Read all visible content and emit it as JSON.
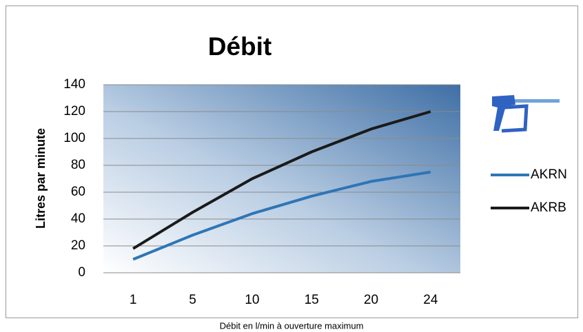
{
  "chart_data": {
    "type": "line",
    "title": "Débit",
    "ylabel": "Litres par minute",
    "xlabel": "Débit en l/min à ouverture maximum",
    "categories": [
      "1",
      "5",
      "10",
      "15",
      "20",
      "24"
    ],
    "series": [
      {
        "name": "AKRN",
        "color": "#2e75b6",
        "values": [
          10,
          28,
          44,
          57,
          68,
          75
        ]
      },
      {
        "name": "AKRB",
        "color": "#1a1a1a",
        "values": [
          18,
          45,
          70,
          90,
          107,
          120
        ]
      }
    ],
    "ylim": [
      0,
      140
    ],
    "yticks": [
      0,
      20,
      40,
      60,
      80,
      100,
      120,
      140
    ],
    "grid": true,
    "legend": "right"
  }
}
